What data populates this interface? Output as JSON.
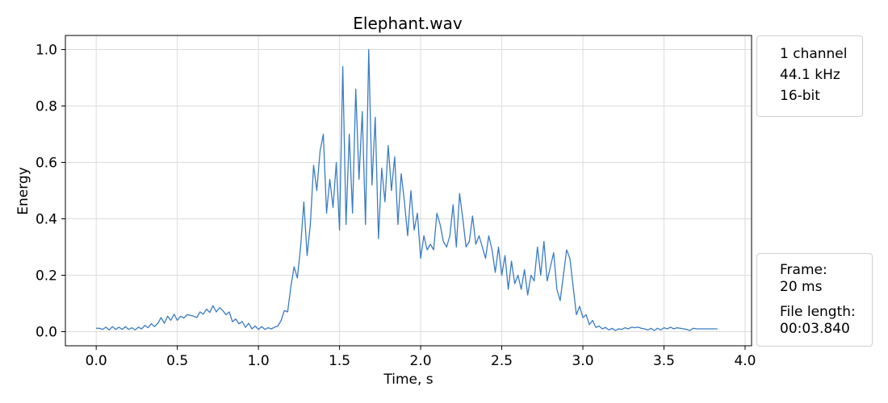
{
  "chart_data": {
    "type": "line",
    "title": "Elephant.wav",
    "xlabel": "Time, s",
    "ylabel": "Energy",
    "xlim": [
      -0.19,
      4.04
    ],
    "ylim": [
      -0.05,
      1.05
    ],
    "xticks": [
      0.0,
      0.5,
      1.0,
      1.5,
      2.0,
      2.5,
      3.0,
      3.5,
      4.0
    ],
    "xtick_labels": [
      "0.0",
      "0.5",
      "1.0",
      "1.5",
      "2.0",
      "2.5",
      "3.0",
      "3.5",
      "4.0"
    ],
    "yticks": [
      0.0,
      0.2,
      0.4,
      0.6,
      0.8,
      1.0
    ],
    "ytick_labels": [
      "0.0",
      "0.2",
      "0.4",
      "0.6",
      "0.8",
      "1.0"
    ],
    "grid": true,
    "line_color": "#3a7cc4",
    "series": [
      {
        "points": [
          [
            0.0,
            0.012
          ],
          [
            0.02,
            0.012
          ],
          [
            0.04,
            0.008
          ],
          [
            0.06,
            0.016
          ],
          [
            0.08,
            0.006
          ],
          [
            0.1,
            0.018
          ],
          [
            0.12,
            0.008
          ],
          [
            0.14,
            0.016
          ],
          [
            0.16,
            0.008
          ],
          [
            0.18,
            0.018
          ],
          [
            0.2,
            0.008
          ],
          [
            0.22,
            0.014
          ],
          [
            0.24,
            0.006
          ],
          [
            0.26,
            0.016
          ],
          [
            0.28,
            0.01
          ],
          [
            0.3,
            0.022
          ],
          [
            0.32,
            0.014
          ],
          [
            0.34,
            0.028
          ],
          [
            0.36,
            0.018
          ],
          [
            0.38,
            0.03
          ],
          [
            0.4,
            0.05
          ],
          [
            0.42,
            0.03
          ],
          [
            0.44,
            0.055
          ],
          [
            0.46,
            0.04
          ],
          [
            0.48,
            0.062
          ],
          [
            0.5,
            0.04
          ],
          [
            0.52,
            0.055
          ],
          [
            0.54,
            0.048
          ],
          [
            0.56,
            0.06
          ],
          [
            0.58,
            0.058
          ],
          [
            0.6,
            0.055
          ],
          [
            0.62,
            0.05
          ],
          [
            0.64,
            0.07
          ],
          [
            0.66,
            0.062
          ],
          [
            0.68,
            0.08
          ],
          [
            0.7,
            0.068
          ],
          [
            0.72,
            0.092
          ],
          [
            0.74,
            0.07
          ],
          [
            0.76,
            0.085
          ],
          [
            0.78,
            0.075
          ],
          [
            0.8,
            0.06
          ],
          [
            0.82,
            0.07
          ],
          [
            0.84,
            0.035
          ],
          [
            0.86,
            0.045
          ],
          [
            0.88,
            0.028
          ],
          [
            0.9,
            0.036
          ],
          [
            0.92,
            0.015
          ],
          [
            0.94,
            0.03
          ],
          [
            0.96,
            0.01
          ],
          [
            0.98,
            0.02
          ],
          [
            1.0,
            0.008
          ],
          [
            1.02,
            0.018
          ],
          [
            1.04,
            0.008
          ],
          [
            1.06,
            0.014
          ],
          [
            1.08,
            0.01
          ],
          [
            1.1,
            0.016
          ],
          [
            1.12,
            0.02
          ],
          [
            1.14,
            0.04
          ],
          [
            1.16,
            0.075
          ],
          [
            1.18,
            0.07
          ],
          [
            1.2,
            0.16
          ],
          [
            1.22,
            0.23
          ],
          [
            1.24,
            0.19
          ],
          [
            1.26,
            0.3
          ],
          [
            1.28,
            0.46
          ],
          [
            1.3,
            0.27
          ],
          [
            1.32,
            0.38
          ],
          [
            1.34,
            0.59
          ],
          [
            1.36,
            0.5
          ],
          [
            1.38,
            0.64
          ],
          [
            1.4,
            0.7
          ],
          [
            1.42,
            0.42
          ],
          [
            1.44,
            0.54
          ],
          [
            1.46,
            0.44
          ],
          [
            1.48,
            0.6
          ],
          [
            1.5,
            0.36
          ],
          [
            1.52,
            0.94
          ],
          [
            1.54,
            0.38
          ],
          [
            1.56,
            0.7
          ],
          [
            1.58,
            0.42
          ],
          [
            1.6,
            0.86
          ],
          [
            1.62,
            0.54
          ],
          [
            1.64,
            0.78
          ],
          [
            1.66,
            0.38
          ],
          [
            1.68,
            1.0
          ],
          [
            1.7,
            0.52
          ],
          [
            1.72,
            0.76
          ],
          [
            1.74,
            0.33
          ],
          [
            1.76,
            0.58
          ],
          [
            1.78,
            0.46
          ],
          [
            1.8,
            0.66
          ],
          [
            1.82,
            0.5
          ],
          [
            1.84,
            0.62
          ],
          [
            1.86,
            0.38
          ],
          [
            1.88,
            0.56
          ],
          [
            1.9,
            0.46
          ],
          [
            1.92,
            0.34
          ],
          [
            1.94,
            0.5
          ],
          [
            1.96,
            0.36
          ],
          [
            1.98,
            0.42
          ],
          [
            2.0,
            0.26
          ],
          [
            2.02,
            0.34
          ],
          [
            2.04,
            0.29
          ],
          [
            2.06,
            0.31
          ],
          [
            2.08,
            0.29
          ],
          [
            2.1,
            0.42
          ],
          [
            2.12,
            0.38
          ],
          [
            2.14,
            0.32
          ],
          [
            2.16,
            0.3
          ],
          [
            2.18,
            0.34
          ],
          [
            2.2,
            0.45
          ],
          [
            2.22,
            0.3
          ],
          [
            2.24,
            0.49
          ],
          [
            2.26,
            0.4
          ],
          [
            2.28,
            0.3
          ],
          [
            2.3,
            0.32
          ],
          [
            2.32,
            0.41
          ],
          [
            2.34,
            0.31
          ],
          [
            2.36,
            0.34
          ],
          [
            2.38,
            0.3
          ],
          [
            2.4,
            0.26
          ],
          [
            2.42,
            0.34
          ],
          [
            2.44,
            0.29
          ],
          [
            2.46,
            0.21
          ],
          [
            2.48,
            0.3
          ],
          [
            2.5,
            0.2
          ],
          [
            2.52,
            0.27
          ],
          [
            2.54,
            0.15
          ],
          [
            2.56,
            0.25
          ],
          [
            2.58,
            0.17
          ],
          [
            2.6,
            0.2
          ],
          [
            2.62,
            0.15
          ],
          [
            2.64,
            0.22
          ],
          [
            2.66,
            0.13
          ],
          [
            2.68,
            0.2
          ],
          [
            2.7,
            0.18
          ],
          [
            2.72,
            0.3
          ],
          [
            2.74,
            0.2
          ],
          [
            2.76,
            0.32
          ],
          [
            2.78,
            0.18
          ],
          [
            2.8,
            0.23
          ],
          [
            2.82,
            0.28
          ],
          [
            2.84,
            0.15
          ],
          [
            2.86,
            0.11
          ],
          [
            2.88,
            0.2
          ],
          [
            2.9,
            0.29
          ],
          [
            2.92,
            0.26
          ],
          [
            2.94,
            0.16
          ],
          [
            2.96,
            0.06
          ],
          [
            2.98,
            0.09
          ],
          [
            3.0,
            0.05
          ],
          [
            3.02,
            0.06
          ],
          [
            3.04,
            0.025
          ],
          [
            3.06,
            0.04
          ],
          [
            3.08,
            0.015
          ],
          [
            3.1,
            0.02
          ],
          [
            3.12,
            0.01
          ],
          [
            3.14,
            0.015
          ],
          [
            3.16,
            0.006
          ],
          [
            3.18,
            0.012
          ],
          [
            3.2,
            0.004
          ],
          [
            3.22,
            0.01
          ],
          [
            3.24,
            0.008
          ],
          [
            3.26,
            0.014
          ],
          [
            3.28,
            0.01
          ],
          [
            3.3,
            0.016
          ],
          [
            3.32,
            0.014
          ],
          [
            3.34,
            0.016
          ],
          [
            3.36,
            0.012
          ],
          [
            3.38,
            0.01
          ],
          [
            3.4,
            0.006
          ],
          [
            3.42,
            0.012
          ],
          [
            3.44,
            0.004
          ],
          [
            3.46,
            0.012
          ],
          [
            3.48,
            0.006
          ],
          [
            3.5,
            0.014
          ],
          [
            3.52,
            0.01
          ],
          [
            3.54,
            0.016
          ],
          [
            3.56,
            0.01
          ],
          [
            3.58,
            0.014
          ],
          [
            3.6,
            0.012
          ],
          [
            3.62,
            0.01
          ],
          [
            3.64,
            0.008
          ],
          [
            3.66,
            0.004
          ],
          [
            3.68,
            0.012
          ],
          [
            3.7,
            0.01
          ],
          [
            3.72,
            0.01
          ],
          [
            3.74,
            0.01
          ],
          [
            3.76,
            0.01
          ],
          [
            3.78,
            0.01
          ],
          [
            3.8,
            0.01
          ],
          [
            3.83,
            0.01
          ]
        ]
      }
    ]
  },
  "info_top": {
    "channels": "1 channel",
    "sample_rate": "44.1 kHz",
    "bit_depth": "16-bit"
  },
  "info_bottom": {
    "frame_label": "Frame:",
    "frame_value": "20 ms",
    "length_label": "File length:",
    "length_value": "00:03.840"
  }
}
